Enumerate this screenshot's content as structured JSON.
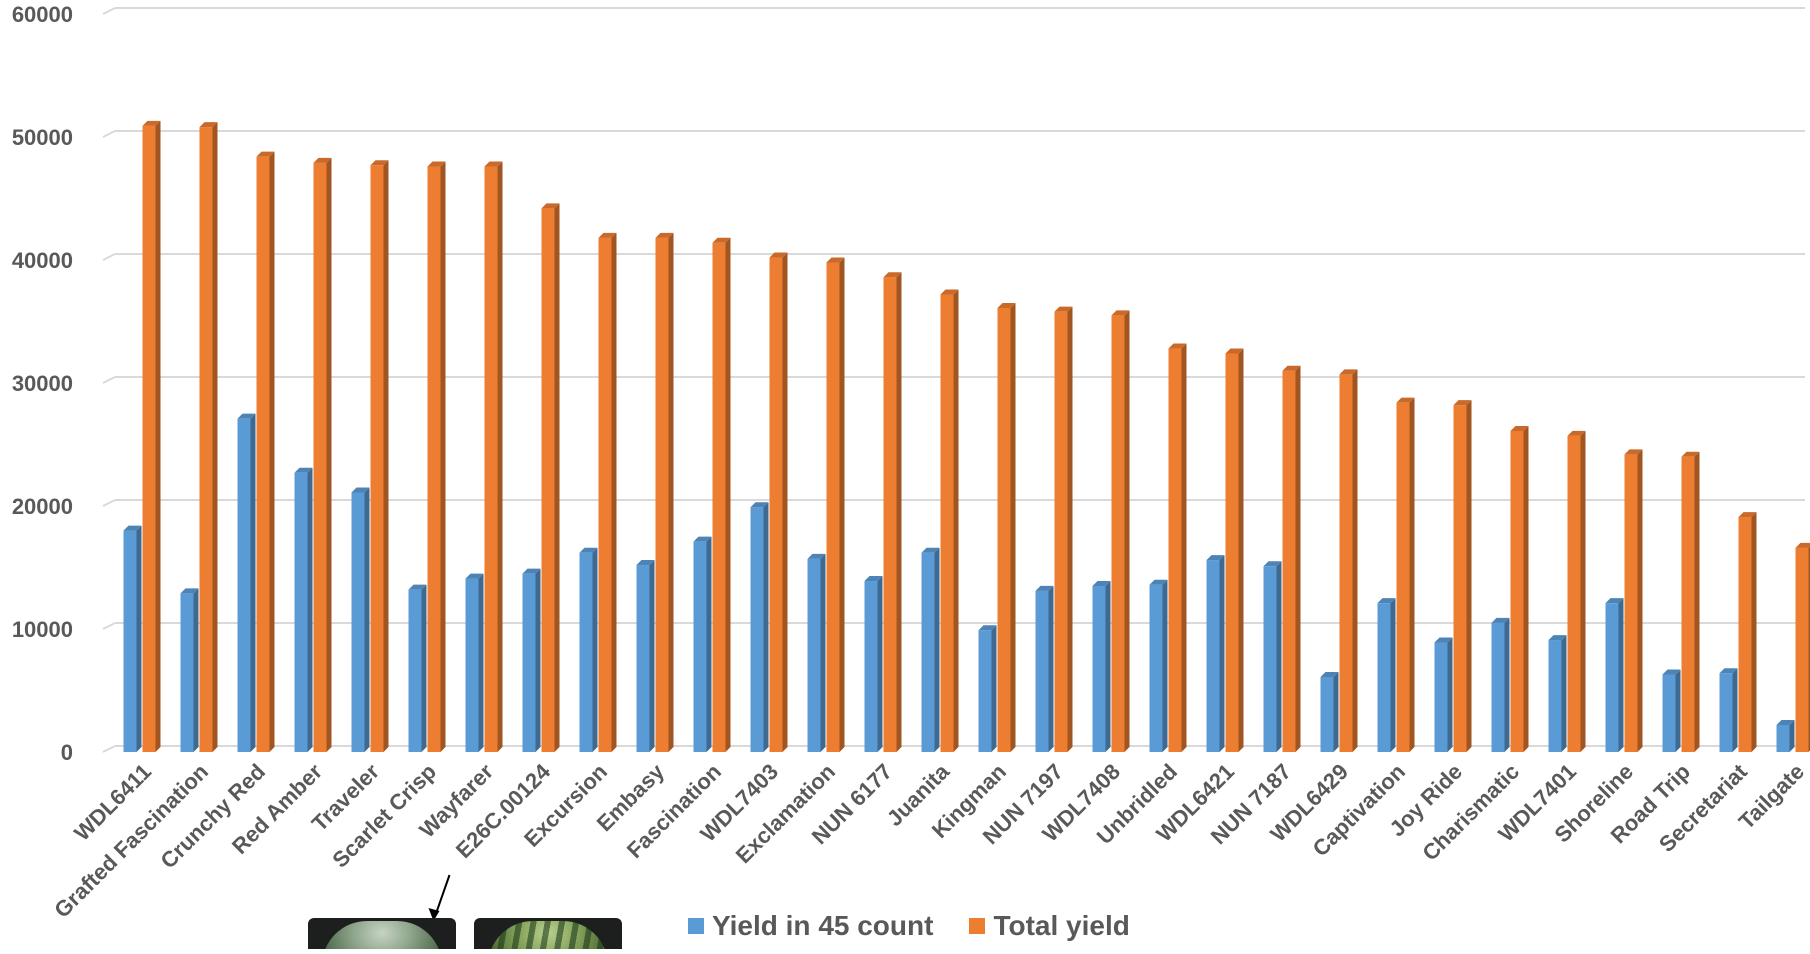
{
  "chart_data": {
    "type": "bar",
    "style": "3d-clustered-column",
    "title": "",
    "xlabel": "",
    "ylabel": "",
    "ylim": [
      0,
      60000
    ],
    "yticks": [
      0,
      10000,
      20000,
      30000,
      40000,
      50000,
      60000
    ],
    "grid": true,
    "legend_position": "bottom",
    "categories": [
      "WDL6411",
      "Grafted Fascination",
      "Crunchy Red",
      "Red Amber",
      "Traveler",
      "Scarlet Crisp",
      "Wayfarer",
      "E26C.00124",
      "Excursion",
      "Embasy",
      "Fascination",
      "WDL7403",
      "Exclamation",
      "NUN 6177",
      "Juanita",
      "Kingman",
      "NUN 7197",
      "WDL7408",
      "Unbridled",
      "WDL6421",
      "NUN 7187",
      "WDL6429",
      "Captivation",
      "Joy Ride",
      "Charismatic",
      "WDL7401",
      "Shoreline",
      "Road Trip",
      "Secretariat",
      "Tailgate"
    ],
    "series": [
      {
        "name": "Yield in 45 count",
        "color": "#5B9BD5",
        "values": [
          18000,
          12900,
          27100,
          22700,
          21100,
          13200,
          14100,
          14500,
          16200,
          15200,
          17100,
          19900,
          15700,
          13900,
          16200,
          9900,
          13100,
          13500,
          13600,
          15600,
          15100,
          6100,
          12100,
          8900,
          10500,
          9100,
          12100,
          6300,
          6400,
          2200
        ]
      },
      {
        "name": "Total yield",
        "color": "#ED7D31",
        "values": [
          50900,
          50800,
          48400,
          47900,
          47700,
          47600,
          47600,
          44200,
          41800,
          41800,
          41400,
          40200,
          39800,
          38600,
          37200,
          36100,
          35800,
          35500,
          32800,
          32400,
          31000,
          30700,
          28400,
          28200,
          26100,
          25700,
          24200,
          24000,
          19100,
          16600
        ]
      }
    ]
  },
  "figure_annotation": {
    "arrow_target": "Wayfarer",
    "photos": [
      "watermelon-photo",
      "striped-watermelon-photo"
    ]
  }
}
